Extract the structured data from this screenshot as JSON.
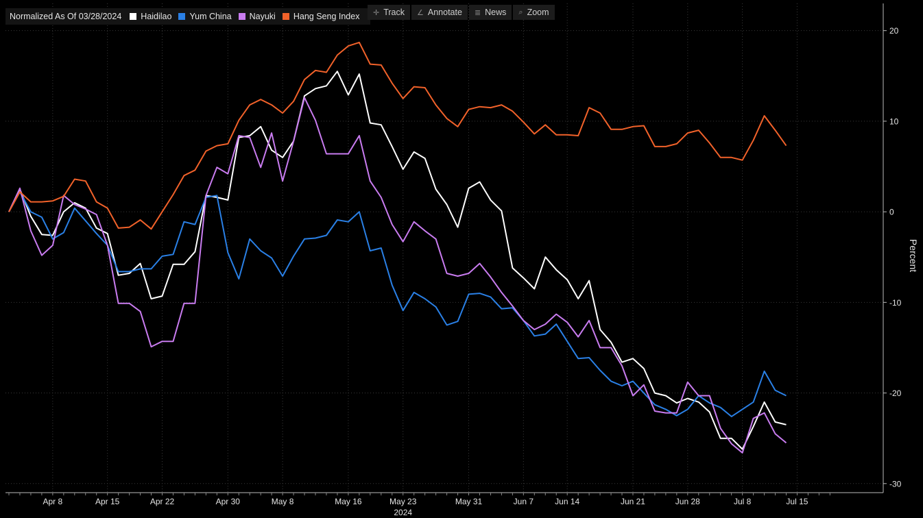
{
  "legend": {
    "title": "Normalized As Of 03/28/2024"
  },
  "toolbar": {
    "track": "Track",
    "annotate": "Annotate",
    "news": "News",
    "zoom": "Zoom"
  },
  "chart_data": {
    "type": "line",
    "title": "Normalized As Of 03/28/2024",
    "xlabel": "2024",
    "ylabel": "Percent",
    "ylim": [
      -31,
      23
    ],
    "yticks": [
      20,
      10,
      0,
      -10,
      -20,
      -30
    ],
    "xlim": [
      0,
      75
    ],
    "xtick_labels": [
      {
        "label": "Apr 8",
        "i": 4
      },
      {
        "label": "Apr 15",
        "i": 9
      },
      {
        "label": "Apr 22",
        "i": 14
      },
      {
        "label": "Apr 30",
        "i": 20
      },
      {
        "label": "May 8",
        "i": 25
      },
      {
        "label": "May 16",
        "i": 31
      },
      {
        "label": "May 23",
        "i": 36
      },
      {
        "label": "May 31",
        "i": 42
      },
      {
        "label": "Jun 7",
        "i": 47
      },
      {
        "label": "Jun 14",
        "i": 51
      },
      {
        "label": "Jun 21",
        "i": 57
      },
      {
        "label": "Jun 28",
        "i": 62
      },
      {
        "label": "Jul 8",
        "i": 67
      },
      {
        "label": "Jul 15",
        "i": 72
      }
    ],
    "grid": true,
    "legend_position": "top-left",
    "series": [
      {
        "name": "Haidilao",
        "color": "#ffffff",
        "values": [
          0,
          2.5,
          -0.5,
          -2.5,
          -2.6,
          0,
          1.0,
          0.4,
          -1.8,
          -2.4,
          -7,
          -6.8,
          -5.7,
          -9.6,
          -9.3,
          -5.8,
          -5.8,
          -4.4,
          1.8,
          1.6,
          1.3,
          8.2,
          8.4,
          9.4,
          6.8,
          6.0,
          7.8,
          12.8,
          13.6,
          13.9,
          15.5,
          12.9,
          15.2,
          9.8,
          9.6,
          7.2,
          4.7,
          6.6,
          5.9,
          2.5,
          0.8,
          -1.7,
          2.6,
          3.3,
          1.3,
          0.1,
          -6.2,
          -7.3,
          -8.5,
          -5.0,
          -6.4,
          -7.5,
          -9.6,
          -7.6,
          -13.0,
          -14.4,
          -16.6,
          -16.2,
          -17.3,
          -20.0,
          -20.3,
          -21.1,
          -20.6,
          -21.0,
          -22.1,
          -25.0,
          -25.0,
          -26.2,
          -23.7,
          -21.0,
          -23.2,
          -23.5
        ]
      },
      {
        "name": "Yum China",
        "color": "#2a80e6",
        "values": [
          0,
          2.2,
          0,
          -0.6,
          -3.0,
          -2.3,
          0.4,
          -1.0,
          -2.4,
          -3.7,
          -6.6,
          -6.6,
          -6.3,
          -6.3,
          -4.9,
          -4.7,
          -1.1,
          -1.4,
          1.6,
          1.8,
          -4.5,
          -7.4,
          -3.0,
          -4.3,
          -5.1,
          -7.1,
          -4.9,
          -3.0,
          -2.9,
          -2.6,
          -0.9,
          -1.1,
          0,
          -4.3,
          -4.0,
          -8.1,
          -10.9,
          -8.9,
          -9.6,
          -10.5,
          -12.5,
          -12.1,
          -9.1,
          -9.0,
          -9.4,
          -10.7,
          -10.6,
          -12.0,
          -13.7,
          -13.5,
          -12.4,
          -14.3,
          -16.2,
          -16.1,
          -17.5,
          -18.7,
          -19.2,
          -18.7,
          -20.0,
          -21.3,
          -21.8,
          -22.5,
          -21.8,
          -20.3,
          -21.1,
          -21.6,
          -22.6,
          -21.8,
          -21.0,
          -17.6,
          -19.7,
          -20.3
        ]
      },
      {
        "name": "Nayuki",
        "color": "#c97cf0",
        "values": [
          0,
          2.6,
          -2.1,
          -4.8,
          -3.7,
          1.8,
          0.8,
          0.3,
          -0.3,
          -3.7,
          -10.1,
          -10.1,
          -11.0,
          -14.9,
          -14.3,
          -14.3,
          -10.1,
          -10.1,
          1.8,
          4.9,
          4.2,
          8.4,
          8.2,
          4.9,
          8.7,
          3.4,
          7.8,
          12.6,
          10.1,
          6.4,
          6.4,
          6.4,
          8.4,
          3.4,
          1.6,
          -1.4,
          -3.3,
          -1.1,
          -2.1,
          -3.0,
          -6.8,
          -7.1,
          -6.8,
          -5.7,
          -7.2,
          -8.9,
          -10.4,
          -12.0,
          -13.0,
          -12.4,
          -11.3,
          -12.2,
          -13.8,
          -12.0,
          -15.0,
          -15.0,
          -17.0,
          -20.3,
          -19.1,
          -22.0,
          -22.2,
          -22.2,
          -18.8,
          -20.3,
          -20.3,
          -23.9,
          -25.6,
          -26.6,
          -22.8,
          -22.2,
          -24.5,
          -25.5
        ]
      },
      {
        "name": "Hang Seng Index",
        "color": "#f2622a",
        "values": [
          0,
          2.2,
          1.1,
          1.1,
          1.2,
          1.7,
          3.6,
          3.4,
          1.1,
          0.4,
          -1.8,
          -1.7,
          -0.9,
          -1.9,
          0,
          1.9,
          4.0,
          4.6,
          6.7,
          7.3,
          7.5,
          10.1,
          11.8,
          12.4,
          11.8,
          10.9,
          12.2,
          14.6,
          15.6,
          15.4,
          17.3,
          18.3,
          18.7,
          16.3,
          16.2,
          14.2,
          12.5,
          13.8,
          13.7,
          11.8,
          10.3,
          9.4,
          11.3,
          11.6,
          11.5,
          11.8,
          11.1,
          9.9,
          8.6,
          9.6,
          8.5,
          8.5,
          8.4,
          11.5,
          10.9,
          9.1,
          9.1,
          9.4,
          9.5,
          7.2,
          7.2,
          7.5,
          8.7,
          9.0,
          7.6,
          6.0,
          6.0,
          5.7,
          7.9,
          10.6,
          9.0,
          7.3
        ]
      }
    ]
  }
}
